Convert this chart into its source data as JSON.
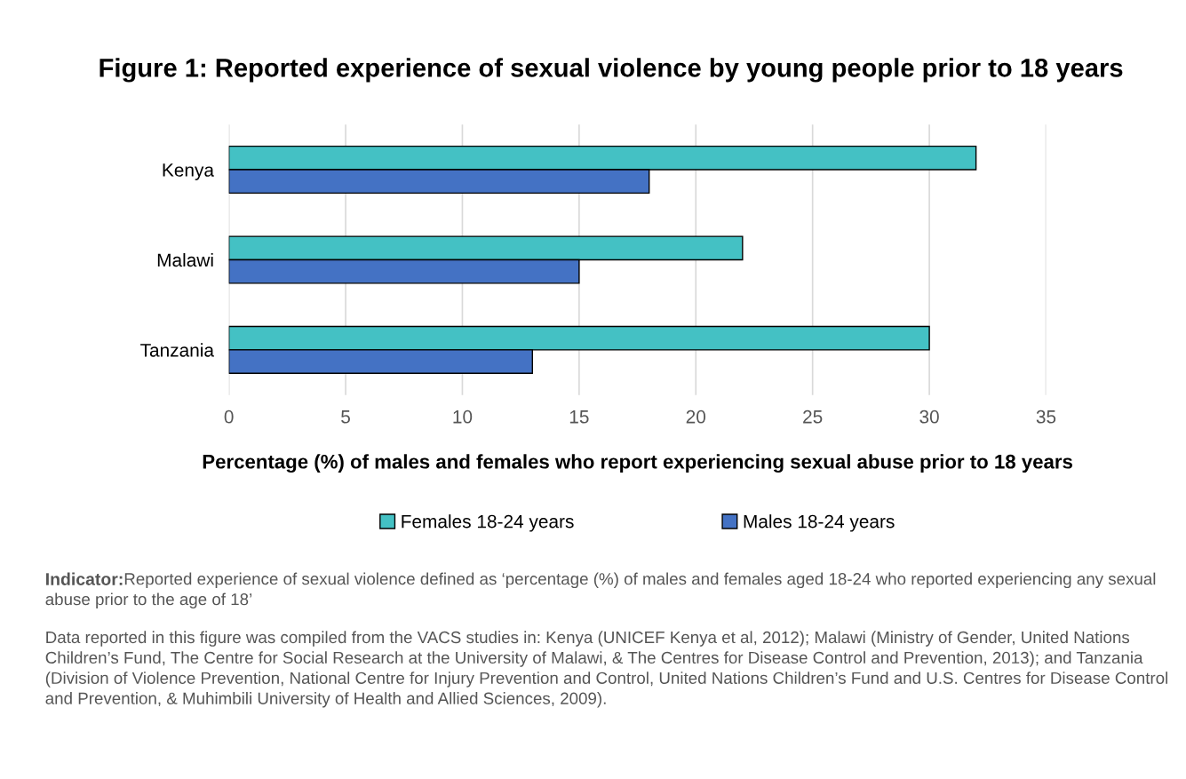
{
  "chart_data": {
    "type": "bar",
    "orientation": "horizontal",
    "title": "Figure 1: Reported experience of sexual violence by young people prior to 18 years",
    "xlabel": "Percentage (%) of males and females who report experiencing sexual abuse prior to 18 years",
    "categories": [
      "Kenya",
      "Malawi",
      "Tanzania"
    ],
    "series": [
      {
        "name": "Females 18-24 years",
        "color": "#44c1c4",
        "values": [
          32,
          22,
          30
        ]
      },
      {
        "name": "Males 18-24 years",
        "color": "#4472c4",
        "values": [
          18,
          15,
          13
        ]
      }
    ],
    "xlim": [
      0,
      35
    ],
    "xticks": [
      0,
      5,
      10,
      15,
      20,
      25,
      30,
      35
    ],
    "grid": "x",
    "legend": "bottom",
    "annotations": [
      "Indicator:",
      "Reported experience of sexual violence defined as ‘percentage (%) of males and females aged 18-24 who reported experiencing any sexual abuse prior to the age of 18’",
      "Data reported in this figure was compiled from the VACS studies in: Kenya (UNICEF Kenya et al, 2012); Malawi (Ministry of Gender, United Nations Children’s Fund, The Centre for Social Research at the University of Malawi, & The Centres for Disease Control and Prevention, 2013); and Tanzania (Division of Violence Prevention, National Centre for Injury Prevention and Control, United Nations Children’s Fund and U.S. Centres for Disease Control and Prevention, & Muhimbili University of Health and Allied Sciences, 2009)."
    ]
  }
}
